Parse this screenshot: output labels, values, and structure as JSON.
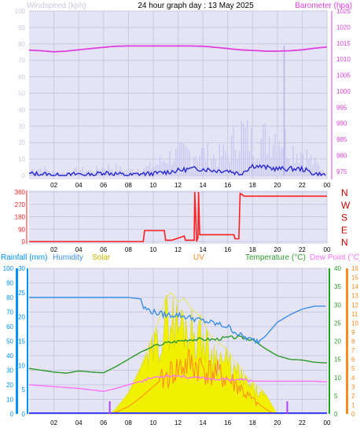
{
  "page": {
    "title": "24 hour graph day : 13 May 2025"
  },
  "colors": {
    "bg": "#ffffff",
    "panel": "#e4e4f4",
    "grid": "#c9c9e3",
    "wind_bar": "#c9c9f2",
    "wind_line": "#2a2ad0",
    "baro": "#e040e0",
    "winddir": "#ff2020",
    "rain": "#0090ff",
    "humidity": "#3b8fe6",
    "solar_fill": "#f0f000",
    "solar_label": "#c8b400",
    "uv": "#ff8a20",
    "temp": "#2d9a2d",
    "temp_axis": "#20a020",
    "dew": "#ff70ff",
    "marker": "#b040ff"
  },
  "chart_data": [
    {
      "id": "wind-baro",
      "type": "line",
      "title": "24 hour graph day : 13 May 2025",
      "left_label": "Windspeed (kph)",
      "right_label": "Barometer (hpa)",
      "left_ylim": [
        0,
        100
      ],
      "left_ticks": [
        0,
        10,
        20,
        30,
        40,
        50,
        60,
        70,
        80,
        90,
        100
      ],
      "right_ylim": [
        972.5,
        1025
      ],
      "right_ticks": [
        975,
        980,
        985,
        990,
        995,
        1000,
        1005,
        1010,
        1015,
        1020,
        1025
      ],
      "x_ticks": [
        "02",
        "04",
        "06",
        "08",
        "10",
        "12",
        "14",
        "16",
        "18",
        "20",
        "22",
        "00"
      ],
      "grid": true,
      "series": [
        {
          "name": "Windspeed (kph)",
          "axis": "left",
          "x": [
            0,
            1,
            2,
            3,
            4,
            5,
            6,
            7,
            8,
            9,
            10,
            11,
            12,
            13,
            14,
            15,
            16,
            17,
            18,
            19,
            20,
            21,
            22,
            23,
            24
          ],
          "values": [
            1,
            1,
            0,
            0,
            1,
            0,
            2,
            1,
            0,
            1,
            1,
            2,
            3,
            4,
            4,
            3,
            3,
            1,
            6,
            5,
            4,
            4,
            4,
            1,
            0
          ]
        },
        {
          "name": "Wind gust (kph)",
          "axis": "left",
          "x": [
            0,
            1,
            2,
            3,
            4,
            5,
            6,
            7,
            8,
            9,
            10,
            11,
            12,
            13,
            14,
            15,
            16,
            17,
            18,
            19,
            20,
            21,
            22,
            23,
            24
          ],
          "values": [
            4,
            5,
            2,
            2,
            4,
            3,
            6,
            5,
            3,
            5,
            6,
            12,
            14,
            16,
            15,
            12,
            16,
            30,
            22,
            25,
            30,
            18,
            16,
            8,
            2
          ]
        },
        {
          "name": "Barometer (hpa)",
          "axis": "right",
          "x": [
            0,
            1,
            2,
            3,
            4,
            5,
            6,
            7,
            8,
            9,
            10,
            11,
            12,
            13,
            14,
            15,
            16,
            17,
            18,
            19,
            20,
            21,
            22,
            23,
            24
          ],
          "values": [
            1012.8,
            1012.6,
            1012.3,
            1012.5,
            1012.9,
            1013.3,
            1013.7,
            1014.0,
            1014.1,
            1014.1,
            1014.1,
            1014.1,
            1014.1,
            1014.1,
            1014.0,
            1013.7,
            1013.3,
            1012.9,
            1012.7,
            1012.5,
            1012.5,
            1012.6,
            1012.9,
            1013.4,
            1013.8
          ]
        }
      ]
    },
    {
      "id": "wind-direction",
      "type": "line",
      "left_ylim": [
        0,
        360
      ],
      "left_ticks": [
        0,
        90,
        180,
        270,
        360
      ],
      "compass_labels": [
        "N",
        "W",
        "S",
        "E",
        "N"
      ],
      "x_ticks": [
        "02",
        "04",
        "06",
        "08",
        "10",
        "12",
        "14",
        "16",
        "18",
        "20",
        "22",
        "00"
      ],
      "series": [
        {
          "name": "Wind direction",
          "x": [
            0,
            9.2,
            9.3,
            10.9,
            11.0,
            11.5,
            12.5,
            12.6,
            13.3,
            13.35,
            13.5,
            13.6,
            13.65,
            13.75,
            14.0,
            16.5,
            16.6,
            16.9,
            17.0,
            17.2,
            17.3,
            18.0,
            24.0
          ],
          "values": [
            0,
            0,
            80,
            80,
            10,
            10,
            40,
            10,
            10,
            360,
            0,
            30,
            360,
            50,
            50,
            50,
            20,
            20,
            350,
            340,
            330,
            330,
            330
          ]
        }
      ]
    },
    {
      "id": "rain-temp",
      "type": "line",
      "legend": [
        "Rainfall (mm)",
        "Humidity",
        "Solar",
        "UV",
        "Temperature (°C)",
        "Dew Point (°C)"
      ],
      "rain_ylim": [
        0,
        30
      ],
      "rain_ticks": [
        0,
        5,
        10,
        15,
        20,
        25,
        30
      ],
      "humidity_ylim": [
        0,
        100
      ],
      "humidity_ticks": [
        0,
        10,
        20,
        30,
        40,
        50,
        60,
        70,
        80,
        90,
        100
      ],
      "temp_ylim": [
        0,
        40
      ],
      "temp_ticks": [
        0,
        5,
        10,
        15,
        20,
        25,
        30,
        35,
        40
      ],
      "uv_ylim": [
        0,
        16
      ],
      "uv_ticks": [
        0,
        1,
        2,
        3,
        4,
        5,
        6,
        7,
        8,
        9,
        10,
        11,
        12,
        13,
        14,
        15,
        16
      ],
      "x_ticks": [
        "02",
        "04",
        "06",
        "08",
        "10",
        "12",
        "14",
        "16",
        "18",
        "20",
        "22",
        "00"
      ],
      "series": [
        {
          "name": "Humidity",
          "x": [
            0,
            2,
            4,
            6,
            8,
            9,
            9.2,
            10,
            11,
            12,
            13,
            14,
            15,
            16,
            17,
            17.8,
            18.5,
            19,
            20,
            21,
            22,
            23,
            24
          ],
          "values": [
            80,
            80,
            80,
            80,
            80,
            79,
            73,
            70,
            68,
            68,
            66,
            64,
            62,
            60,
            54,
            51,
            50,
            53,
            63,
            68,
            72,
            74,
            74
          ]
        },
        {
          "name": "Temperature (°C)",
          "x": [
            0,
            1,
            2,
            3,
            4,
            5,
            6,
            7,
            8,
            9,
            10,
            11,
            12,
            13,
            14,
            15,
            16,
            17,
            18,
            19,
            20,
            21,
            22,
            23,
            24
          ],
          "values": [
            12.5,
            12,
            11.5,
            11.2,
            11.8,
            11.5,
            11.3,
            13,
            15,
            17,
            18.5,
            19.5,
            20,
            20.5,
            20.5,
            20.5,
            21,
            21,
            20.5,
            18,
            16,
            15,
            14.8,
            14.2,
            14
          ]
        },
        {
          "name": "Dew Point (°C)",
          "x": [
            0,
            2,
            4,
            6,
            7,
            8,
            9,
            10,
            11,
            12,
            13,
            14,
            15,
            16,
            17,
            18,
            19,
            20,
            21,
            22,
            23,
            24
          ],
          "values": [
            8,
            7.5,
            7,
            6.2,
            7,
            8,
            9,
            10,
            10.5,
            10.5,
            10,
            9.8,
            9.6,
            9.5,
            9.5,
            9,
            9,
            9,
            9,
            9,
            9,
            8.8
          ]
        },
        {
          "name": "Solar",
          "x": [
            0,
            6,
            6.5,
            7,
            8,
            9,
            10,
            10.5,
            11,
            11.5,
            12,
            12.5,
            13,
            13.5,
            14,
            14.5,
            15,
            15.5,
            16,
            16.5,
            17,
            17.5,
            18,
            18.5,
            19,
            19.5,
            20,
            24
          ],
          "values": [
            0,
            0,
            0,
            1,
            4,
            9,
            15,
            18,
            22,
            23,
            21,
            22,
            20,
            19,
            18,
            15,
            14,
            13,
            12,
            10,
            9,
            7,
            6,
            5,
            4,
            2,
            0,
            0
          ]
        },
        {
          "name": "UV",
          "x": [
            0,
            6.5,
            7,
            8,
            9,
            10,
            11,
            11.5,
            12,
            12.5,
            13,
            13.5,
            14,
            14.5,
            15,
            15.5,
            16,
            16.5,
            17,
            17.5,
            18,
            18.5,
            19,
            19.5,
            20,
            24
          ],
          "values": [
            0,
            0,
            0.2,
            0.8,
            1.8,
            3,
            4.2,
            4.8,
            5.2,
            5.6,
            5.8,
            5.5,
            5.4,
            4.8,
            4.8,
            4.3,
            4.0,
            3.5,
            3.0,
            2.2,
            1.6,
            1.1,
            0.6,
            0.2,
            0,
            0
          ]
        },
        {
          "name": "Rainfall (mm)",
          "x": [
            0,
            24
          ],
          "values": [
            0,
            0
          ]
        }
      ]
    }
  ]
}
